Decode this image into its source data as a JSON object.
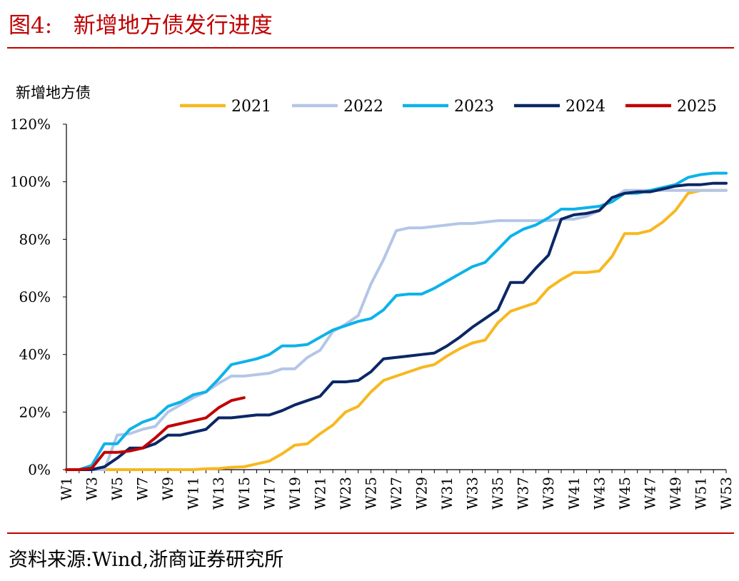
{
  "header": {
    "figure_title": "图4:   新增地方债发行进度"
  },
  "footer": {
    "source": "资料来源:Wind,浙商证券研究所"
  },
  "chart_data": {
    "type": "line",
    "title": "",
    "ylabel": "新增地方债",
    "xlabel": "",
    "ylim": [
      0,
      120
    ],
    "yticks": [
      0,
      20,
      40,
      60,
      80,
      100,
      120
    ],
    "ytick_labels": [
      "0%",
      "20%",
      "40%",
      "60%",
      "80%",
      "100%",
      "120%"
    ],
    "xlim": [
      1,
      53
    ],
    "xtick_labels": [
      "W1",
      "W3",
      "W5",
      "W7",
      "W9",
      "W11",
      "W13",
      "W15",
      "W17",
      "W19",
      "W21",
      "W23",
      "W25",
      "W27",
      "W29",
      "W31",
      "W33",
      "W35",
      "W37",
      "W39",
      "W41",
      "W43",
      "W45",
      "W47",
      "W49",
      "W51",
      "W53"
    ],
    "legend_position": "top",
    "grid": false,
    "series": [
      {
        "name": "2021",
        "color": "#f7b81f",
        "values": [
          0,
          0,
          0,
          0,
          0,
          0,
          0,
          0,
          0,
          0,
          0,
          0.3,
          0.4,
          0.8,
          1,
          2,
          3,
          5.5,
          8.5,
          9,
          12.5,
          15.5,
          20,
          22,
          27,
          31,
          32.5,
          34,
          35.5,
          36.5,
          39.5,
          42,
          44,
          45,
          51,
          55,
          56.5,
          58,
          63,
          66,
          68.5,
          68.5,
          69,
          74,
          82,
          82,
          83,
          86,
          90,
          96,
          97,
          97,
          97
        ]
      },
      {
        "name": "2022",
        "color": "#b4c6e7",
        "values": [
          0,
          0,
          0,
          0,
          12,
          12.5,
          14,
          15,
          20,
          22.5,
          25,
          27,
          30,
          32.5,
          32.5,
          33,
          33.5,
          35,
          35,
          39,
          41.5,
          48,
          50.5,
          53.5,
          64.5,
          73,
          83,
          84,
          84,
          84.5,
          85,
          85.5,
          85.5,
          86,
          86.5,
          86.5,
          86.5,
          86.5,
          86.5,
          87,
          87,
          88,
          90,
          94,
          97,
          97,
          97,
          97,
          97,
          97,
          97,
          97,
          97
        ]
      },
      {
        "name": "2023",
        "color": "#0db2e9",
        "values": [
          0,
          0,
          1.5,
          9,
          9,
          14,
          16.5,
          18,
          22,
          23.5,
          26,
          27,
          31.5,
          36.5,
          37.5,
          38.5,
          40,
          43,
          43,
          43.5,
          46,
          48.5,
          50,
          51.5,
          52.5,
          55.5,
          60.5,
          61,
          61,
          63,
          65.5,
          68,
          70.5,
          72,
          76.5,
          81,
          83.5,
          85,
          87.5,
          90.5,
          90.5,
          91,
          91.5,
          93,
          96,
          96,
          97,
          98,
          99,
          101.5,
          102.5,
          103,
          103
        ]
      },
      {
        "name": "2024",
        "color": "#0b2765",
        "values": [
          0,
          0,
          0,
          1,
          4,
          7.5,
          7.5,
          9,
          12,
          12,
          13,
          14,
          18,
          18,
          18.5,
          19,
          19,
          20.5,
          22.5,
          24,
          25.5,
          30.5,
          30.5,
          31,
          34,
          38.5,
          39,
          39.5,
          40,
          40.5,
          43,
          46,
          49.5,
          52.5,
          55.5,
          65,
          65,
          70,
          74.5,
          87,
          88.5,
          89,
          90,
          94.5,
          96,
          96.5,
          96.5,
          97.5,
          98.5,
          99,
          99,
          99.5,
          99.5
        ]
      },
      {
        "name": "2025",
        "color": "#c00000",
        "values": [
          0,
          0,
          0.5,
          6,
          6,
          6.5,
          7.5,
          11,
          15,
          16,
          17,
          18,
          21.5,
          24,
          25
        ]
      }
    ]
  }
}
